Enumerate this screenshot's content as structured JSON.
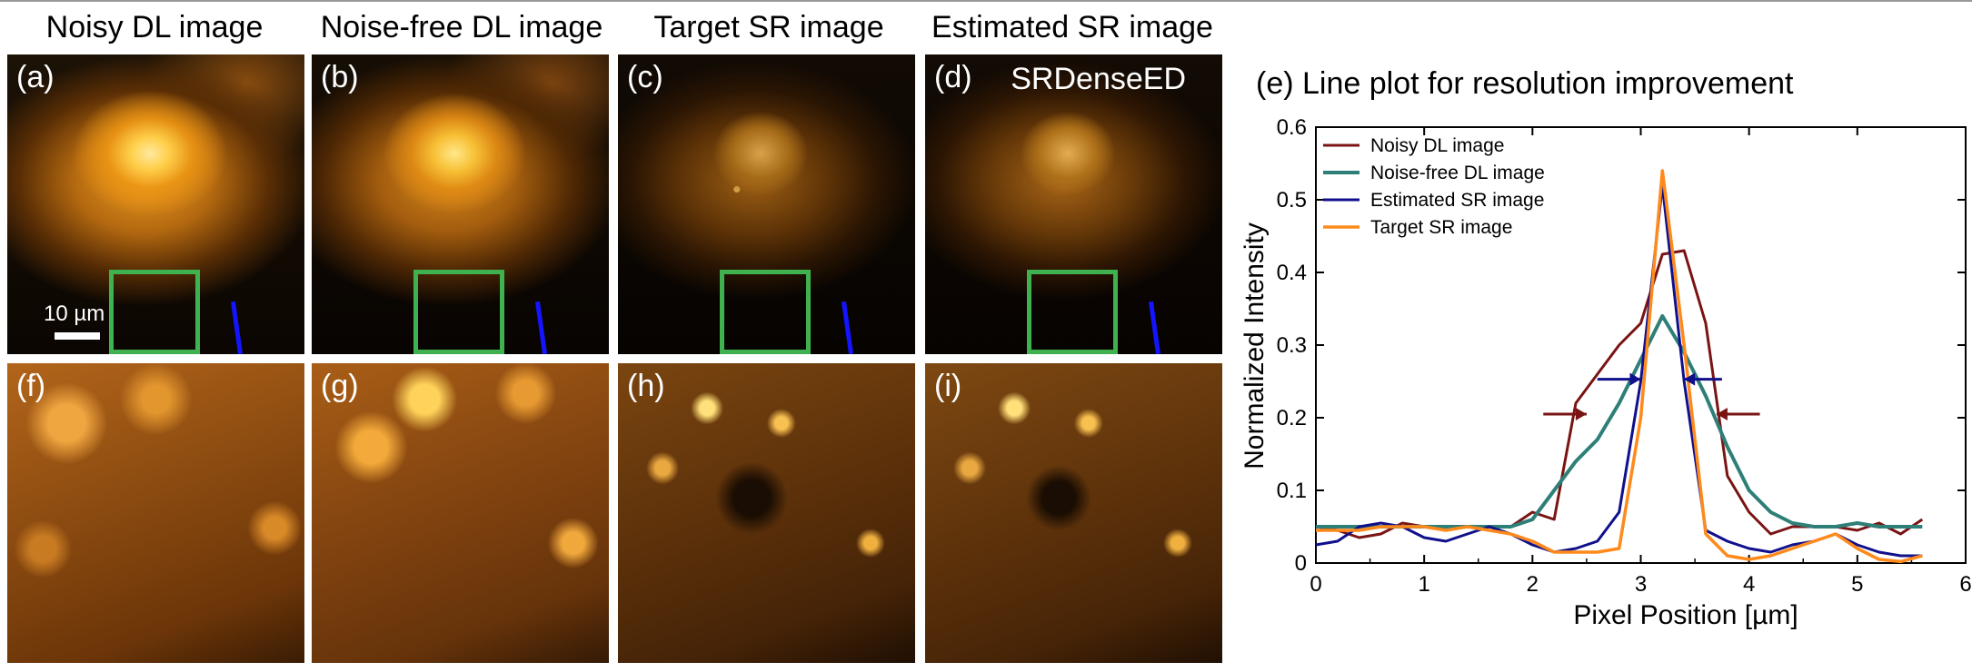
{
  "column_titles": [
    "Noisy DL image",
    "Noise-free DL image",
    "Target SR image",
    "Estimated SR image"
  ],
  "panels_top": [
    "(a)",
    "(b)",
    "(c)",
    "(d)"
  ],
  "panels_bottom": [
    "(f)",
    "(g)",
    "(h)",
    "(i)"
  ],
  "method_label": "SRDenseED",
  "scale_bar_label": "10 µm",
  "colors": {
    "roi_box": "#3fb24f",
    "line_marker": "#1414ff",
    "noisy": "#7a1414",
    "noisefree": "#2e7f77",
    "estimated": "#10108c",
    "target": "#ff8a1c"
  },
  "chart_data": {
    "type": "line",
    "title": "(e) Line plot for resolution improvement",
    "xlabel": "Pixel Position [µm]",
    "ylabel": "Normalized Intensity",
    "xlim": [
      0,
      6
    ],
    "ylim": [
      0,
      0.6
    ],
    "x_ticks": [
      "0",
      "1",
      "2",
      "3",
      "4",
      "5",
      "6"
    ],
    "y_ticks": [
      "0",
      "0.1",
      "0.2",
      "0.3",
      "0.4",
      "0.5",
      "0.6"
    ],
    "legend_position": "top-left",
    "grid": false,
    "x": [
      0,
      0.2,
      0.4,
      0.6,
      0.8,
      1.0,
      1.2,
      1.4,
      1.6,
      1.8,
      2.0,
      2.2,
      2.4,
      2.6,
      2.8,
      3.0,
      3.2,
      3.4,
      3.6,
      3.8,
      4.0,
      4.2,
      4.4,
      4.6,
      4.8,
      5.0,
      5.2,
      5.4,
      5.6
    ],
    "series": [
      {
        "name": "Noisy DL image",
        "values": [
          0.05,
          0.045,
          0.035,
          0.04,
          0.055,
          0.05,
          0.045,
          0.05,
          0.05,
          0.05,
          0.07,
          0.06,
          0.22,
          0.26,
          0.3,
          0.33,
          0.425,
          0.43,
          0.33,
          0.12,
          0.07,
          0.04,
          0.05,
          0.05,
          0.05,
          0.045,
          0.055,
          0.04,
          0.06
        ]
      },
      {
        "name": "Noise-free DL image",
        "values": [
          0.05,
          0.05,
          0.05,
          0.05,
          0.05,
          0.05,
          0.05,
          0.05,
          0.05,
          0.05,
          0.06,
          0.1,
          0.14,
          0.17,
          0.22,
          0.28,
          0.34,
          0.29,
          0.23,
          0.16,
          0.1,
          0.07,
          0.055,
          0.05,
          0.05,
          0.055,
          0.05,
          0.05,
          0.05
        ]
      },
      {
        "name": "Estimated SR image",
        "values": [
          0.025,
          0.03,
          0.05,
          0.055,
          0.05,
          0.035,
          0.03,
          0.04,
          0.05,
          0.04,
          0.025,
          0.015,
          0.02,
          0.03,
          0.07,
          0.25,
          0.52,
          0.25,
          0.045,
          0.03,
          0.02,
          0.015,
          0.025,
          0.03,
          0.04,
          0.025,
          0.015,
          0.01,
          0.01
        ]
      },
      {
        "name": "Target SR image",
        "values": [
          0.045,
          0.045,
          0.045,
          0.05,
          0.05,
          0.05,
          0.045,
          0.05,
          0.045,
          0.04,
          0.03,
          0.015,
          0.015,
          0.015,
          0.02,
          0.2,
          0.54,
          0.3,
          0.04,
          0.01,
          0.005,
          0.01,
          0.02,
          0.03,
          0.04,
          0.02,
          0.005,
          0.002,
          0.01
        ]
      }
    ]
  }
}
